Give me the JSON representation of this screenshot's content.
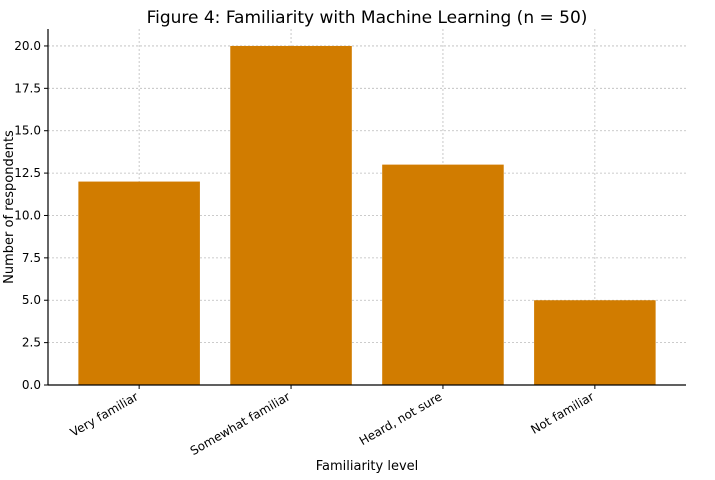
{
  "chart_data": {
    "type": "bar",
    "title": "Figure 4: Familiarity with Machine Learning (n = 50)",
    "xlabel": "Familiarity level",
    "ylabel": "Number of respondents",
    "categories": [
      "Very familiar",
      "Somewhat familiar",
      "Heard, not sure",
      "Not familiar"
    ],
    "values": [
      12,
      20,
      13,
      5
    ],
    "ylim": [
      0,
      21
    ],
    "yticks": [
      0.0,
      2.5,
      5.0,
      7.5,
      10.0,
      12.5,
      15.0,
      17.5,
      20.0
    ],
    "ytick_labels": [
      "0.0",
      "2.5",
      "5.0",
      "7.5",
      "10.0",
      "12.5",
      "15.0",
      "17.5",
      "20.0"
    ],
    "grid": true,
    "bar_color": "#D17C00"
  }
}
